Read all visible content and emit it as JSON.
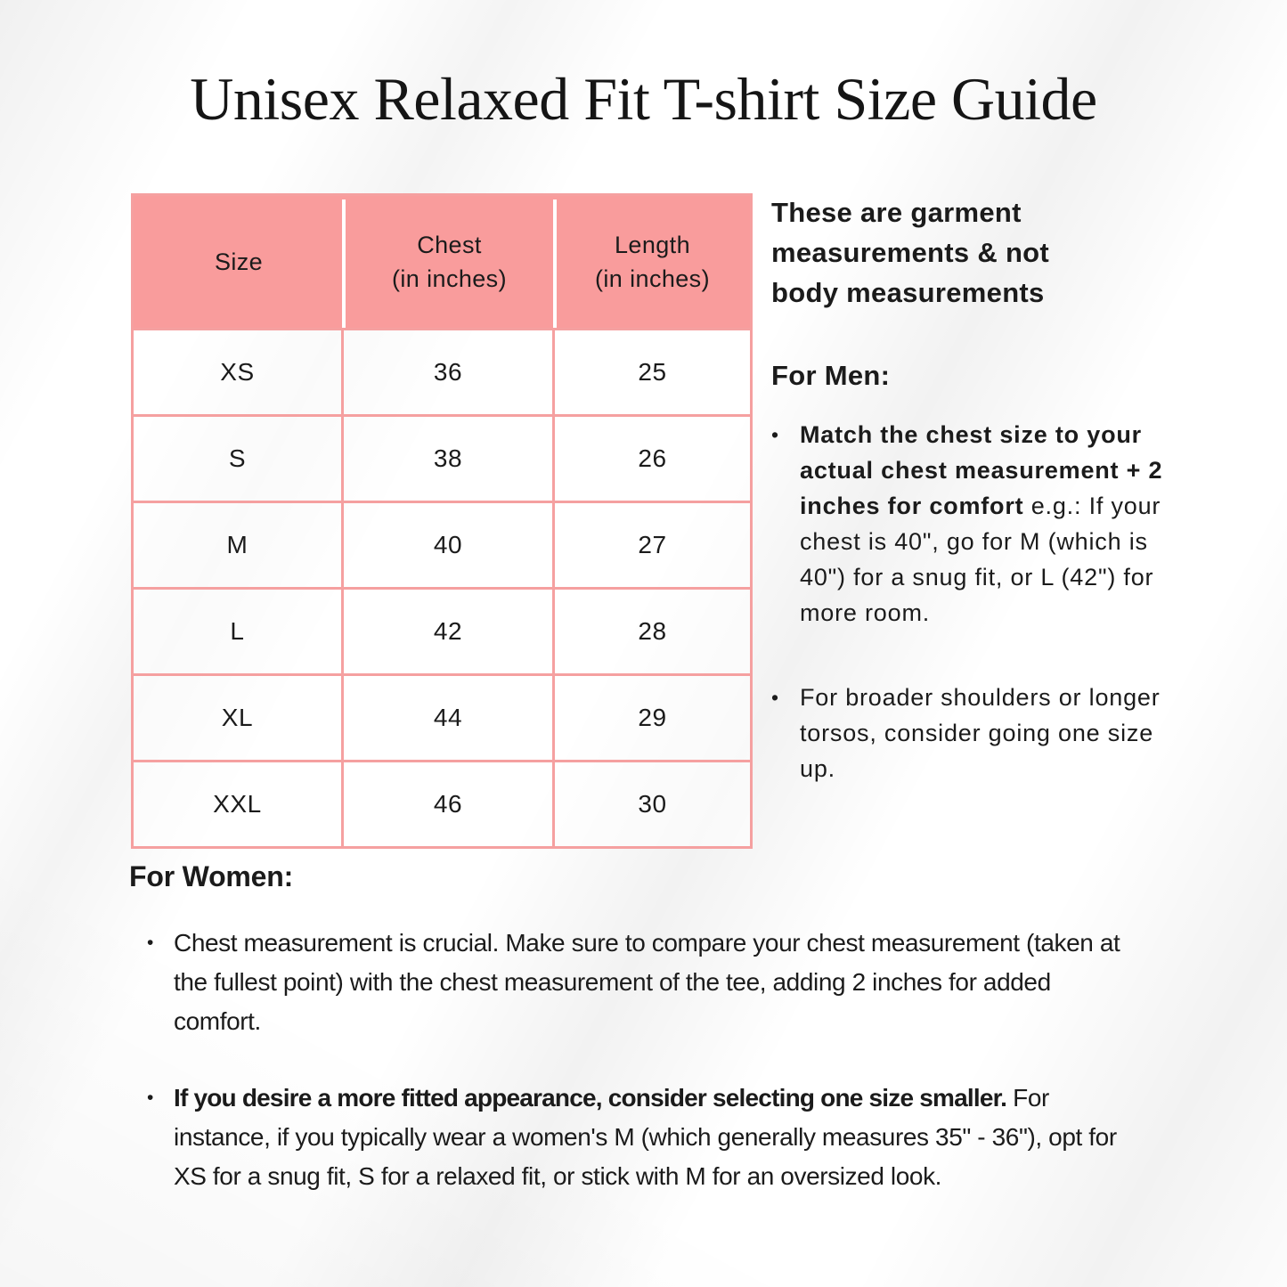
{
  "title": "Unisex Relaxed Fit T-shirt Size Guide",
  "bullet_char": "•",
  "note": "These are garment measurements & not body measurements",
  "size_table": {
    "headers": [
      {
        "label": "Size",
        "sub": ""
      },
      {
        "label": "Chest",
        "sub": "(in inches)"
      },
      {
        "label": "Length",
        "sub": "(in inches)"
      }
    ],
    "rows": [
      {
        "size": "XS",
        "chest": "36",
        "length": "25"
      },
      {
        "size": "S",
        "chest": "38",
        "length": "26"
      },
      {
        "size": "M",
        "chest": "40",
        "length": "27"
      },
      {
        "size": "L",
        "chest": "42",
        "length": "28"
      },
      {
        "size": "XL",
        "chest": "44",
        "length": "29"
      },
      {
        "size": "XXL",
        "chest": "46",
        "length": "30"
      }
    ]
  },
  "men_section": {
    "heading": "For Men:",
    "bullets": [
      {
        "bold": "Match the chest size to your actual chest measurement + 2 inches for comfort ",
        "regular": "e.g.: If your chest is 40\", go for M (which is 40\") for a snug fit, or L (42\") for more room."
      },
      {
        "bold": "",
        "regular": "For broader shoulders or longer torsos, consider going one size up."
      }
    ]
  },
  "women_section": {
    "heading": "For Women:",
    "bullets": [
      {
        "bold": "",
        "regular": "Chest measurement is crucial. Make sure to compare your chest measurement (taken at the fullest point) with the chest measurement of the tee, adding 2 inches for added comfort."
      },
      {
        "bold": "If you desire a more fitted appearance, consider selecting one size smaller. ",
        "regular": "For instance, if you typically wear a women's M (which generally measures 35\" - 36\"), opt for XS for a snug fit, S for a relaxed fit, or stick with M for an oversized look."
      }
    ]
  },
  "colors": {
    "header_bg": "#F99C9C",
    "table_border": "#F5A0A0",
    "text": "#1B1B1B"
  }
}
